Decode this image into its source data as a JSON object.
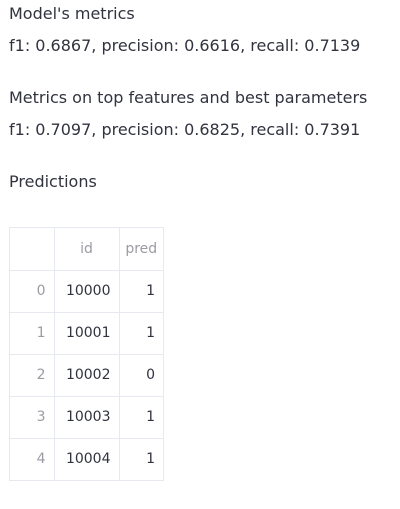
{
  "metrics": {
    "model_title": "Model's metrics",
    "model_values": "f1: 0.6867, precision: 0.6616, recall: 0.7139",
    "top_title": "Metrics on top features and best parameters",
    "top_values": "f1: 0.7097, precision: 0.6825, recall: 0.7391"
  },
  "predictions": {
    "title": "Predictions",
    "columns": [
      "",
      "id",
      "pred"
    ],
    "rows": [
      {
        "index": "0",
        "id": "10000",
        "pred": "1"
      },
      {
        "index": "1",
        "id": "10001",
        "pred": "1"
      },
      {
        "index": "2",
        "id": "10002",
        "pred": "0"
      },
      {
        "index": "3",
        "id": "10003",
        "pred": "1"
      },
      {
        "index": "4",
        "id": "10004",
        "pred": "1"
      }
    ]
  }
}
